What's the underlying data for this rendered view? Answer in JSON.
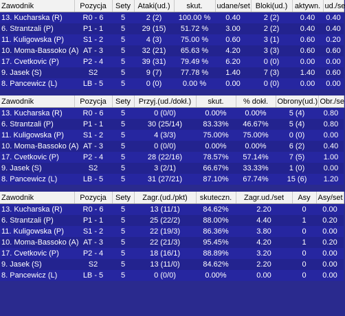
{
  "tables": [
    {
      "headers": [
        "Zawodnik",
        "Pozycja",
        "Sety",
        "Ataki(ud.)",
        "skut.",
        "udane/set",
        "Bloki(ud.)",
        "aktywn.",
        "ud./se"
      ],
      "rows": [
        [
          "13. Kucharska (R)",
          "R0 - 6",
          "5",
          "2 (2)",
          "100.00 %",
          "0.40",
          "2 (2)",
          "0.40",
          "0.40"
        ],
        [
          "6. Strantzali (P)",
          "P1 - 1",
          "5",
          "29 (15)",
          "51.72 %",
          "3.00",
          "2 (2)",
          "0.40",
          "0.40"
        ],
        [
          "11. Kuligowska (P)",
          "S1 - 2",
          "5",
          "4 (3)",
          "75.00 %",
          "0.60",
          "3 (1)",
          "0.60",
          "0.20"
        ],
        [
          "10. Moma-Bassoko (A)",
          "AT - 3",
          "5",
          "32 (21)",
          "65.63 %",
          "4.20",
          "3 (3)",
          "0.60",
          "0.60"
        ],
        [
          "17. Cvetkovic (P)",
          "P2 - 4",
          "5",
          "39 (31)",
          "79.49 %",
          "6.20",
          "0 (0)",
          "0.00",
          "0.00"
        ],
        [
          "9. Jasek (S)",
          "S2",
          "5",
          "9 (7)",
          "77.78 %",
          "1.40",
          "7 (3)",
          "1.40",
          "0.60"
        ],
        [
          "8. Pancewicz (L)",
          "LB - 5",
          "5",
          "0 (0)",
          "0.00 %",
          "0.00",
          "0 (0)",
          "0.00",
          "0.00"
        ]
      ]
    },
    {
      "headers": [
        "Zawodnik",
        "Pozycja",
        "Sety",
        "Przyj.(ud./dokł.)",
        "skut.",
        "% dokł.",
        "Obrony(ud.)",
        "Obr./se"
      ],
      "rows": [
        [
          "13. Kucharska (R)",
          "R0 - 6",
          "5",
          "0 (0/0)",
          "0.00%",
          "0.00%",
          "5 (4)",
          "0.80"
        ],
        [
          "6. Strantzali (P)",
          "P1 - 1",
          "5",
          "30 (25/14)",
          "83.33%",
          "46.67%",
          "5 (4)",
          "0.80"
        ],
        [
          "11. Kuligowska (P)",
          "S1 - 2",
          "5",
          "4 (3/3)",
          "75.00%",
          "75.00%",
          "0 (0)",
          "0.00"
        ],
        [
          "10. Moma-Bassoko (A)",
          "AT - 3",
          "5",
          "0 (0/0)",
          "0.00%",
          "0.00%",
          "6 (2)",
          "0.40"
        ],
        [
          "17. Cvetkovic (P)",
          "P2 - 4",
          "5",
          "28 (22/16)",
          "78.57%",
          "57.14%",
          "7 (5)",
          "1.00"
        ],
        [
          "9. Jasek (S)",
          "S2",
          "5",
          "3 (2/1)",
          "66.67%",
          "33.33%",
          "1 (0)",
          "0.00"
        ],
        [
          "8. Pancewicz (L)",
          "LB - 5",
          "5",
          "31 (27/21)",
          "87.10%",
          "67.74%",
          "15 (6)",
          "1.20"
        ]
      ]
    },
    {
      "headers": [
        "Zawodnik",
        "Pozycja",
        "Sety",
        "Zagr.(ud./pkt)",
        "skuteczn.",
        "Zagr.ud./set",
        "Asy",
        "Asy/set"
      ],
      "rows": [
        [
          "13. Kucharska (R)",
          "R0 - 6",
          "5",
          "13 (11/1)",
          "84.62%",
          "2.20",
          "0",
          "0.00"
        ],
        [
          "6. Strantzali (P)",
          "P1 - 1",
          "5",
          "25 (22/2)",
          "88.00%",
          "4.40",
          "1",
          "0.20"
        ],
        [
          "11. Kuligowska (P)",
          "S1 - 2",
          "5",
          "22 (19/3)",
          "86.36%",
          "3.80",
          "0",
          "0.00"
        ],
        [
          "10. Moma-Bassoko (A)",
          "AT - 3",
          "5",
          "22 (21/3)",
          "95.45%",
          "4.20",
          "1",
          "0.20"
        ],
        [
          "17. Cvetkovic (P)",
          "P2 - 4",
          "5",
          "18 (16/1)",
          "88.89%",
          "3.20",
          "0",
          "0.00"
        ],
        [
          "9. Jasek (S)",
          "S2",
          "5",
          "13 (11/0)",
          "84.62%",
          "2.20",
          "0",
          "0.00"
        ],
        [
          "8. Pancewicz (L)",
          "LB - 5",
          "5",
          "0 (0/0)",
          "0.00%",
          "0.00",
          "0",
          "0.00"
        ]
      ]
    }
  ]
}
